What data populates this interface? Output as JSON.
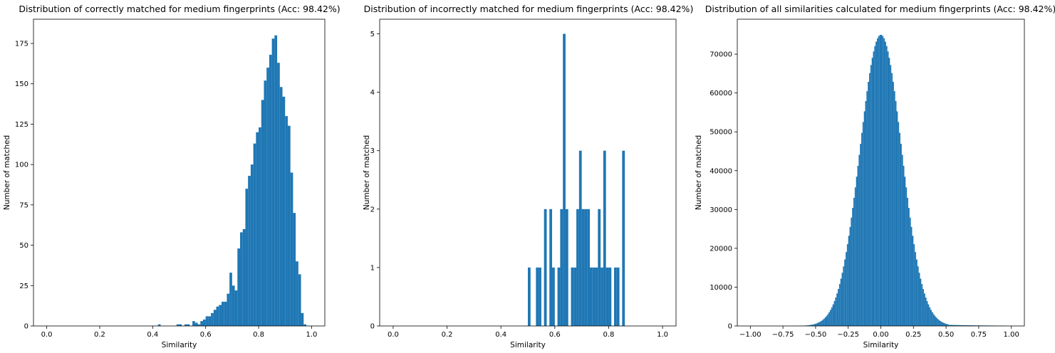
{
  "chart_data": [
    {
      "type": "bar",
      "title": "Distribution of correctly matched for medium fingerprints (Acc: 98.42%)",
      "xlabel": "Similarity",
      "ylabel": "Number of matched",
      "xlim": [
        -0.05,
        1.05
      ],
      "ylim": [
        0,
        190
      ],
      "xticks": [
        0.0,
        0.2,
        0.4,
        0.6,
        0.8,
        1.0
      ],
      "xtick_labels": [
        "0.0",
        "0.2",
        "0.4",
        "0.6",
        "0.8",
        "1.0"
      ],
      "yticks": [
        0,
        25,
        50,
        75,
        100,
        125,
        150,
        175
      ],
      "ytick_labels": [
        "0",
        "25",
        "50",
        "75",
        "100",
        "125",
        "150",
        "175"
      ],
      "color": "#1f77b4",
      "bin_width": 0.01,
      "bins": [
        [
          0.42,
          1
        ],
        [
          0.49,
          1
        ],
        [
          0.5,
          1
        ],
        [
          0.52,
          1
        ],
        [
          0.53,
          1
        ],
        [
          0.55,
          3
        ],
        [
          0.56,
          2
        ],
        [
          0.57,
          1
        ],
        [
          0.58,
          3
        ],
        [
          0.59,
          4
        ],
        [
          0.6,
          6
        ],
        [
          0.61,
          6
        ],
        [
          0.62,
          8
        ],
        [
          0.63,
          10
        ],
        [
          0.64,
          12
        ],
        [
          0.65,
          13
        ],
        [
          0.66,
          15
        ],
        [
          0.67,
          15
        ],
        [
          0.68,
          20
        ],
        [
          0.69,
          33
        ],
        [
          0.7,
          25
        ],
        [
          0.71,
          22
        ],
        [
          0.72,
          48
        ],
        [
          0.73,
          58
        ],
        [
          0.74,
          60
        ],
        [
          0.75,
          85
        ],
        [
          0.76,
          93
        ],
        [
          0.77,
          100
        ],
        [
          0.78,
          113
        ],
        [
          0.79,
          120
        ],
        [
          0.8,
          123
        ],
        [
          0.81,
          140
        ],
        [
          0.82,
          152
        ],
        [
          0.83,
          160
        ],
        [
          0.84,
          168
        ],
        [
          0.85,
          178
        ],
        [
          0.86,
          180
        ],
        [
          0.87,
          163
        ],
        [
          0.88,
          148
        ],
        [
          0.89,
          142
        ],
        [
          0.9,
          130
        ],
        [
          0.91,
          124
        ],
        [
          0.92,
          95
        ],
        [
          0.93,
          70
        ],
        [
          0.94,
          40
        ],
        [
          0.95,
          32
        ],
        [
          0.96,
          8
        ],
        [
          0.97,
          1
        ]
      ]
    },
    {
      "type": "bar",
      "title": "Distribution of incorrectly matched for medium fingerprints (Acc: 98.42%)",
      "xlabel": "Similarity",
      "ylabel": "Number of matched",
      "xlim": [
        -0.05,
        1.05
      ],
      "ylim": [
        0,
        5.25
      ],
      "xticks": [
        0.0,
        0.2,
        0.4,
        0.6,
        0.8,
        1.0
      ],
      "xtick_labels": [
        "0.0",
        "0.2",
        "0.4",
        "0.6",
        "0.8",
        "1.0"
      ],
      "yticks": [
        0,
        1,
        2,
        3,
        4,
        5
      ],
      "ytick_labels": [
        "0",
        "1",
        "2",
        "3",
        "4",
        "5"
      ],
      "color": "#1f77b4",
      "bin_width": 0.01,
      "bins": [
        [
          0.5,
          1
        ],
        [
          0.53,
          1
        ],
        [
          0.54,
          1
        ],
        [
          0.56,
          2
        ],
        [
          0.58,
          2
        ],
        [
          0.59,
          1
        ],
        [
          0.61,
          1
        ],
        [
          0.62,
          2
        ],
        [
          0.63,
          5
        ],
        [
          0.64,
          2
        ],
        [
          0.66,
          1
        ],
        [
          0.67,
          1
        ],
        [
          0.68,
          2
        ],
        [
          0.69,
          3
        ],
        [
          0.7,
          2
        ],
        [
          0.71,
          2
        ],
        [
          0.72,
          2
        ],
        [
          0.73,
          1
        ],
        [
          0.74,
          1
        ],
        [
          0.75,
          1
        ],
        [
          0.76,
          2
        ],
        [
          0.77,
          1
        ],
        [
          0.78,
          3
        ],
        [
          0.79,
          1
        ],
        [
          0.8,
          1
        ],
        [
          0.82,
          1
        ],
        [
          0.83,
          1
        ],
        [
          0.85,
          3
        ]
      ]
    },
    {
      "type": "bar",
      "title": "Distribution of all similarities calculated for medium fingerprints (Acc: 98.42%)",
      "xlabel": "Similarity",
      "ylabel": "Number of matched",
      "xlim": [
        -1.1,
        1.1
      ],
      "ylim": [
        0,
        79000
      ],
      "xticks": [
        -1.0,
        -0.75,
        -0.5,
        -0.25,
        0.0,
        0.25,
        0.5,
        0.75,
        1.0
      ],
      "xtick_labels": [
        "−1.00",
        "−0.75",
        "−0.50",
        "−0.25",
        "0.00",
        "0.25",
        "0.50",
        "0.75",
        "1.00"
      ],
      "yticks": [
        0,
        10000,
        20000,
        30000,
        40000,
        50000,
        60000,
        70000
      ],
      "ytick_labels": [
        "0",
        "10000",
        "20000",
        "30000",
        "40000",
        "50000",
        "60000",
        "70000"
      ],
      "color": "#1f77b4",
      "distribution": {
        "shape": "normal",
        "mean": 0.0,
        "sd": 0.16,
        "peak": 75000,
        "bin_width": 0.01,
        "range": [
          -0.65,
          0.95
        ],
        "right_tail_floor": 350
      }
    }
  ]
}
